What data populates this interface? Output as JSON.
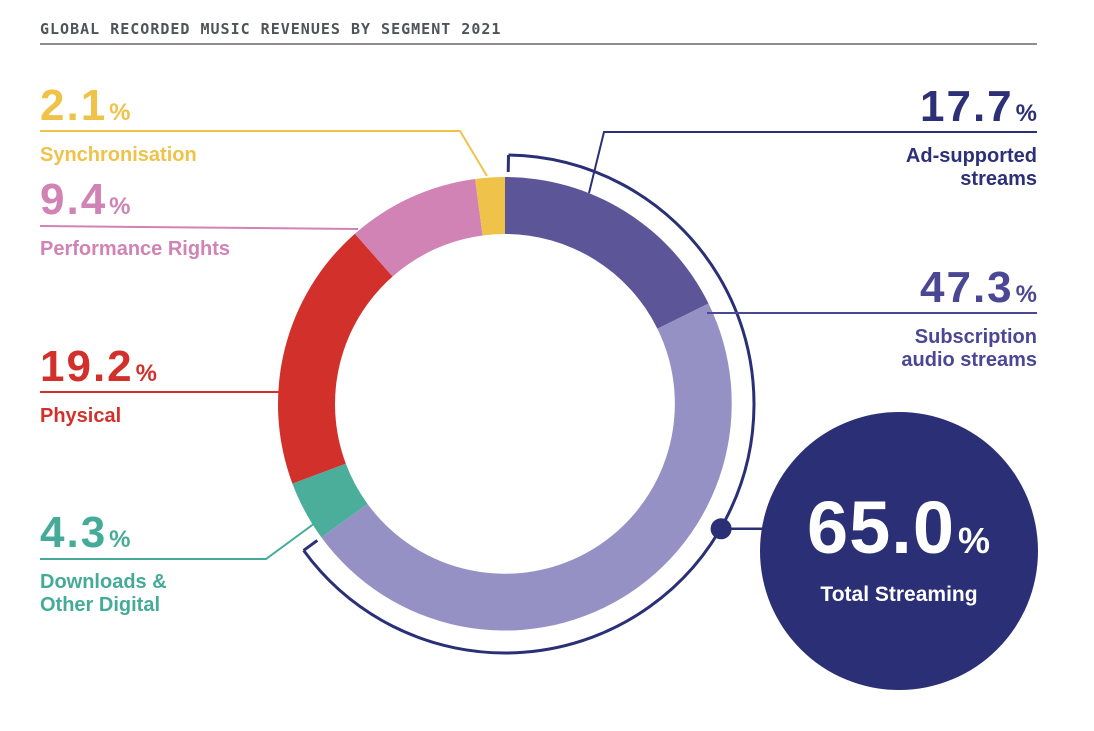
{
  "header": {
    "title": "GLOBAL RECORDED MUSIC REVENUES BY SEGMENT 2021"
  },
  "percent_sign": "%",
  "colors": {
    "navy": "#2B3076",
    "title_gray": "#4F5458",
    "rule_gray": "#8E8E8E",
    "white": "#ffffff"
  },
  "chart_data": {
    "type": "pie",
    "subtype": "donut",
    "title": "Global Recorded Music Revenues by Segment 2021",
    "start_position": "12 o'clock",
    "direction": "clockwise",
    "segments": [
      {
        "label": "Ad-supported streams",
        "value": 17.7,
        "color": "#5C5598"
      },
      {
        "label": "Subscription audio streams",
        "value": 47.3,
        "color": "#9691C5"
      },
      {
        "label": "Downloads & Other Digital",
        "value": 4.3,
        "color": "#4BAE9B"
      },
      {
        "label": "Physical",
        "value": 19.2,
        "color": "#D2312B"
      },
      {
        "label": "Performance Rights",
        "value": 9.4,
        "color": "#D083B4"
      },
      {
        "label": "Synchronisation",
        "value": 2.1,
        "color": "#EFC24A"
      }
    ],
    "streaming_arc": {
      "covers": [
        "Ad-supported streams",
        "Subscription audio streams"
      ],
      "total_pct": 65.0
    },
    "highlight": {
      "value": 65.0,
      "display": "65.0",
      "label": "Total Streaming"
    }
  },
  "callouts": {
    "sync": {
      "value": "2.1",
      "label": "Synchronisation",
      "color": "#EFC24A"
    },
    "performance": {
      "value": "9.4",
      "label": "Performance Rights",
      "color": "#D083B4"
    },
    "physical": {
      "value": "19.2",
      "label": "Physical",
      "color": "#D2312B"
    },
    "downloads": {
      "value": "4.3",
      "label_line1": "Downloads &",
      "label_line2": "Other Digital",
      "color": "#45AB98"
    },
    "ad": {
      "value": "17.7",
      "label_line1": "Ad-supported",
      "label_line2": "streams",
      "color": "#2D3076"
    },
    "subscription": {
      "value": "47.3",
      "label_line1": "Subscription",
      "label_line2": "audio streams",
      "color": "#4B4795"
    }
  }
}
